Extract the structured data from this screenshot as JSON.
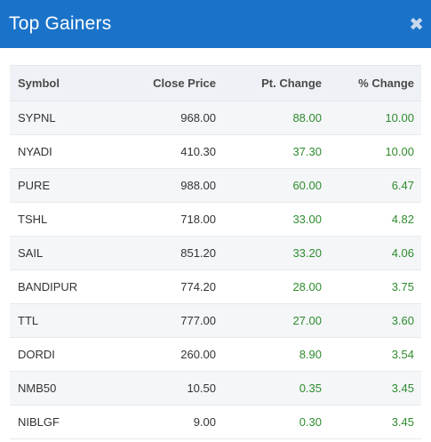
{
  "dialog": {
    "title": "Top Gainers",
    "close_glyph": "✖",
    "header_color": "#1a73c9",
    "gain_color": "#2e8b2e"
  },
  "table": {
    "headers": {
      "symbol": "Symbol",
      "close_price": "Close Price",
      "pt_change": "Pt. Change",
      "pct_change": "% Change"
    },
    "rows": [
      {
        "symbol": "SYPNL",
        "close_price": "968.00",
        "pt_change": "88.00",
        "pct_change": "10.00"
      },
      {
        "symbol": "NYADI",
        "close_price": "410.30",
        "pt_change": "37.30",
        "pct_change": "10.00"
      },
      {
        "symbol": "PURE",
        "close_price": "988.00",
        "pt_change": "60.00",
        "pct_change": "6.47"
      },
      {
        "symbol": "TSHL",
        "close_price": "718.00",
        "pt_change": "33.00",
        "pct_change": "4.82"
      },
      {
        "symbol": "SAIL",
        "close_price": "851.20",
        "pt_change": "33.20",
        "pct_change": "4.06"
      },
      {
        "symbol": "BANDIPUR",
        "close_price": "774.20",
        "pt_change": "28.00",
        "pct_change": "3.75"
      },
      {
        "symbol": "TTL",
        "close_price": "777.00",
        "pt_change": "27.00",
        "pct_change": "3.60"
      },
      {
        "symbol": "DORDI",
        "close_price": "260.00",
        "pt_change": "8.90",
        "pct_change": "3.54"
      },
      {
        "symbol": "NMB50",
        "close_price": "10.50",
        "pt_change": "0.35",
        "pct_change": "3.45"
      },
      {
        "symbol": "NIBLGF",
        "close_price": "9.00",
        "pt_change": "0.30",
        "pct_change": "3.45"
      }
    ]
  }
}
